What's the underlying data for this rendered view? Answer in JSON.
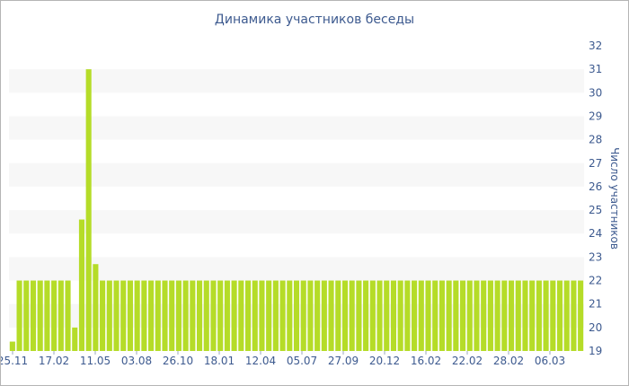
{
  "chart_data": {
    "type": "bar",
    "title": "Динамика участников беседы",
    "xlabel": "",
    "ylabel": "Число участников",
    "ylim": [
      19,
      32
    ],
    "yticks": [
      19,
      20,
      21,
      22,
      23,
      24,
      25,
      26,
      27,
      28,
      29,
      30,
      31,
      32
    ],
    "x_tick_labels": [
      "25.11",
      "17.02",
      "11.05",
      "03.08",
      "26.10",
      "18.01",
      "12.04",
      "05.07",
      "27.09",
      "20.12",
      "16.02",
      "22.02",
      "28.02",
      "06.03"
    ],
    "grid": "alternating horizontal bands",
    "colors": {
      "bar": "#b5dc28",
      "band": "#f7f7f7",
      "text": "#3d5a8f"
    },
    "values": [
      19.4,
      22,
      22,
      22,
      22,
      22,
      22,
      22,
      22,
      20,
      24.6,
      31,
      22.7,
      22,
      22,
      22,
      22,
      22,
      22,
      22,
      22,
      22,
      22,
      22,
      22,
      22,
      22,
      22,
      22,
      22,
      22,
      22,
      22,
      22,
      22,
      22,
      22,
      22,
      22,
      22,
      22,
      22,
      22,
      22,
      22,
      22,
      22,
      22,
      22,
      22,
      22,
      22,
      22,
      22,
      22,
      22,
      22,
      22,
      22,
      22,
      22,
      22,
      22,
      22,
      22,
      22,
      22,
      22,
      22,
      22,
      22,
      22,
      22,
      22,
      22,
      22,
      22,
      22,
      22,
      22,
      22,
      22,
      22
    ]
  }
}
